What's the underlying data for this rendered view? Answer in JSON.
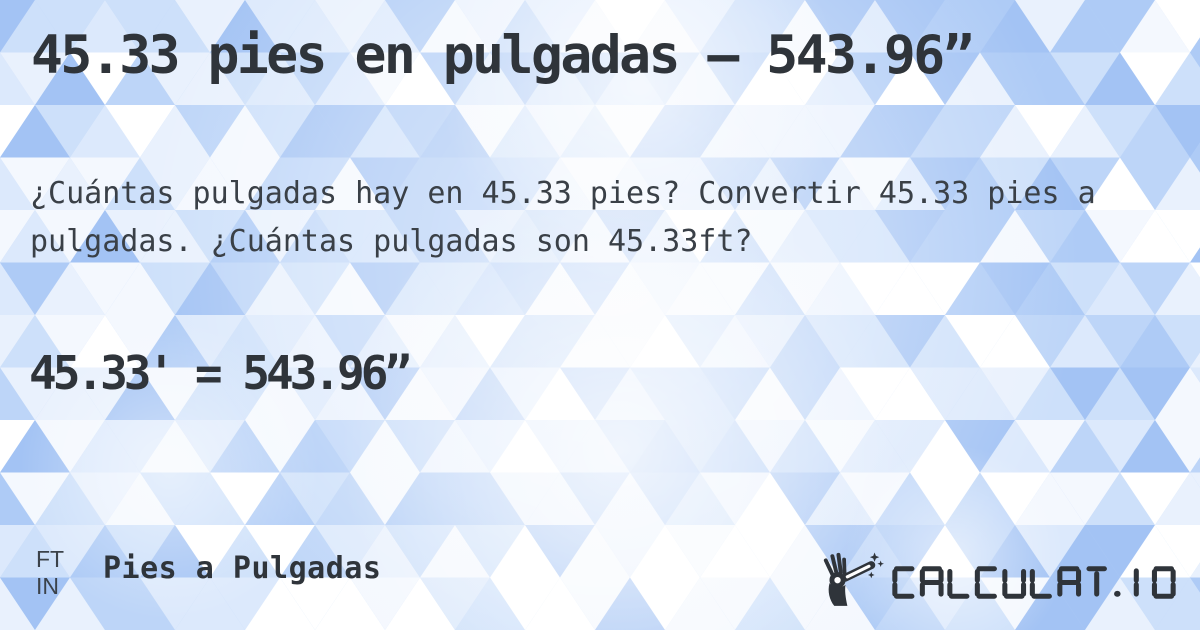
{
  "card": {
    "title": "45.33 pies en pulgadas — 543.96”",
    "description": "¿Cuántas pulgadas hay en 45.33 pies? Convertir 45.33 pies a pulgadas. ¿Cuántas pulgadas son 45.33ft?",
    "result": "45.33' = 543.96”"
  },
  "footer": {
    "unit_badge": {
      "from": "FT",
      "to": "IN"
    },
    "category_label": "Pies a Pulgadas"
  },
  "logo": {
    "wordmark": "CALCULAT.IO",
    "icon": "magic-wand-hand-icon"
  },
  "colors": {
    "text_primary": "#2f343a",
    "text_secondary": "#3a4047",
    "badge_text": "#3b424a",
    "logo_color": "#2f343a",
    "background_base": "#bdd5f8",
    "background_palette": [
      "#ffffff",
      "#f4f8fe",
      "#e9f1fd",
      "#dce9fc",
      "#cde0fa",
      "#bdd5f8",
      "#aecbf6",
      "#a3c3f4"
    ]
  }
}
